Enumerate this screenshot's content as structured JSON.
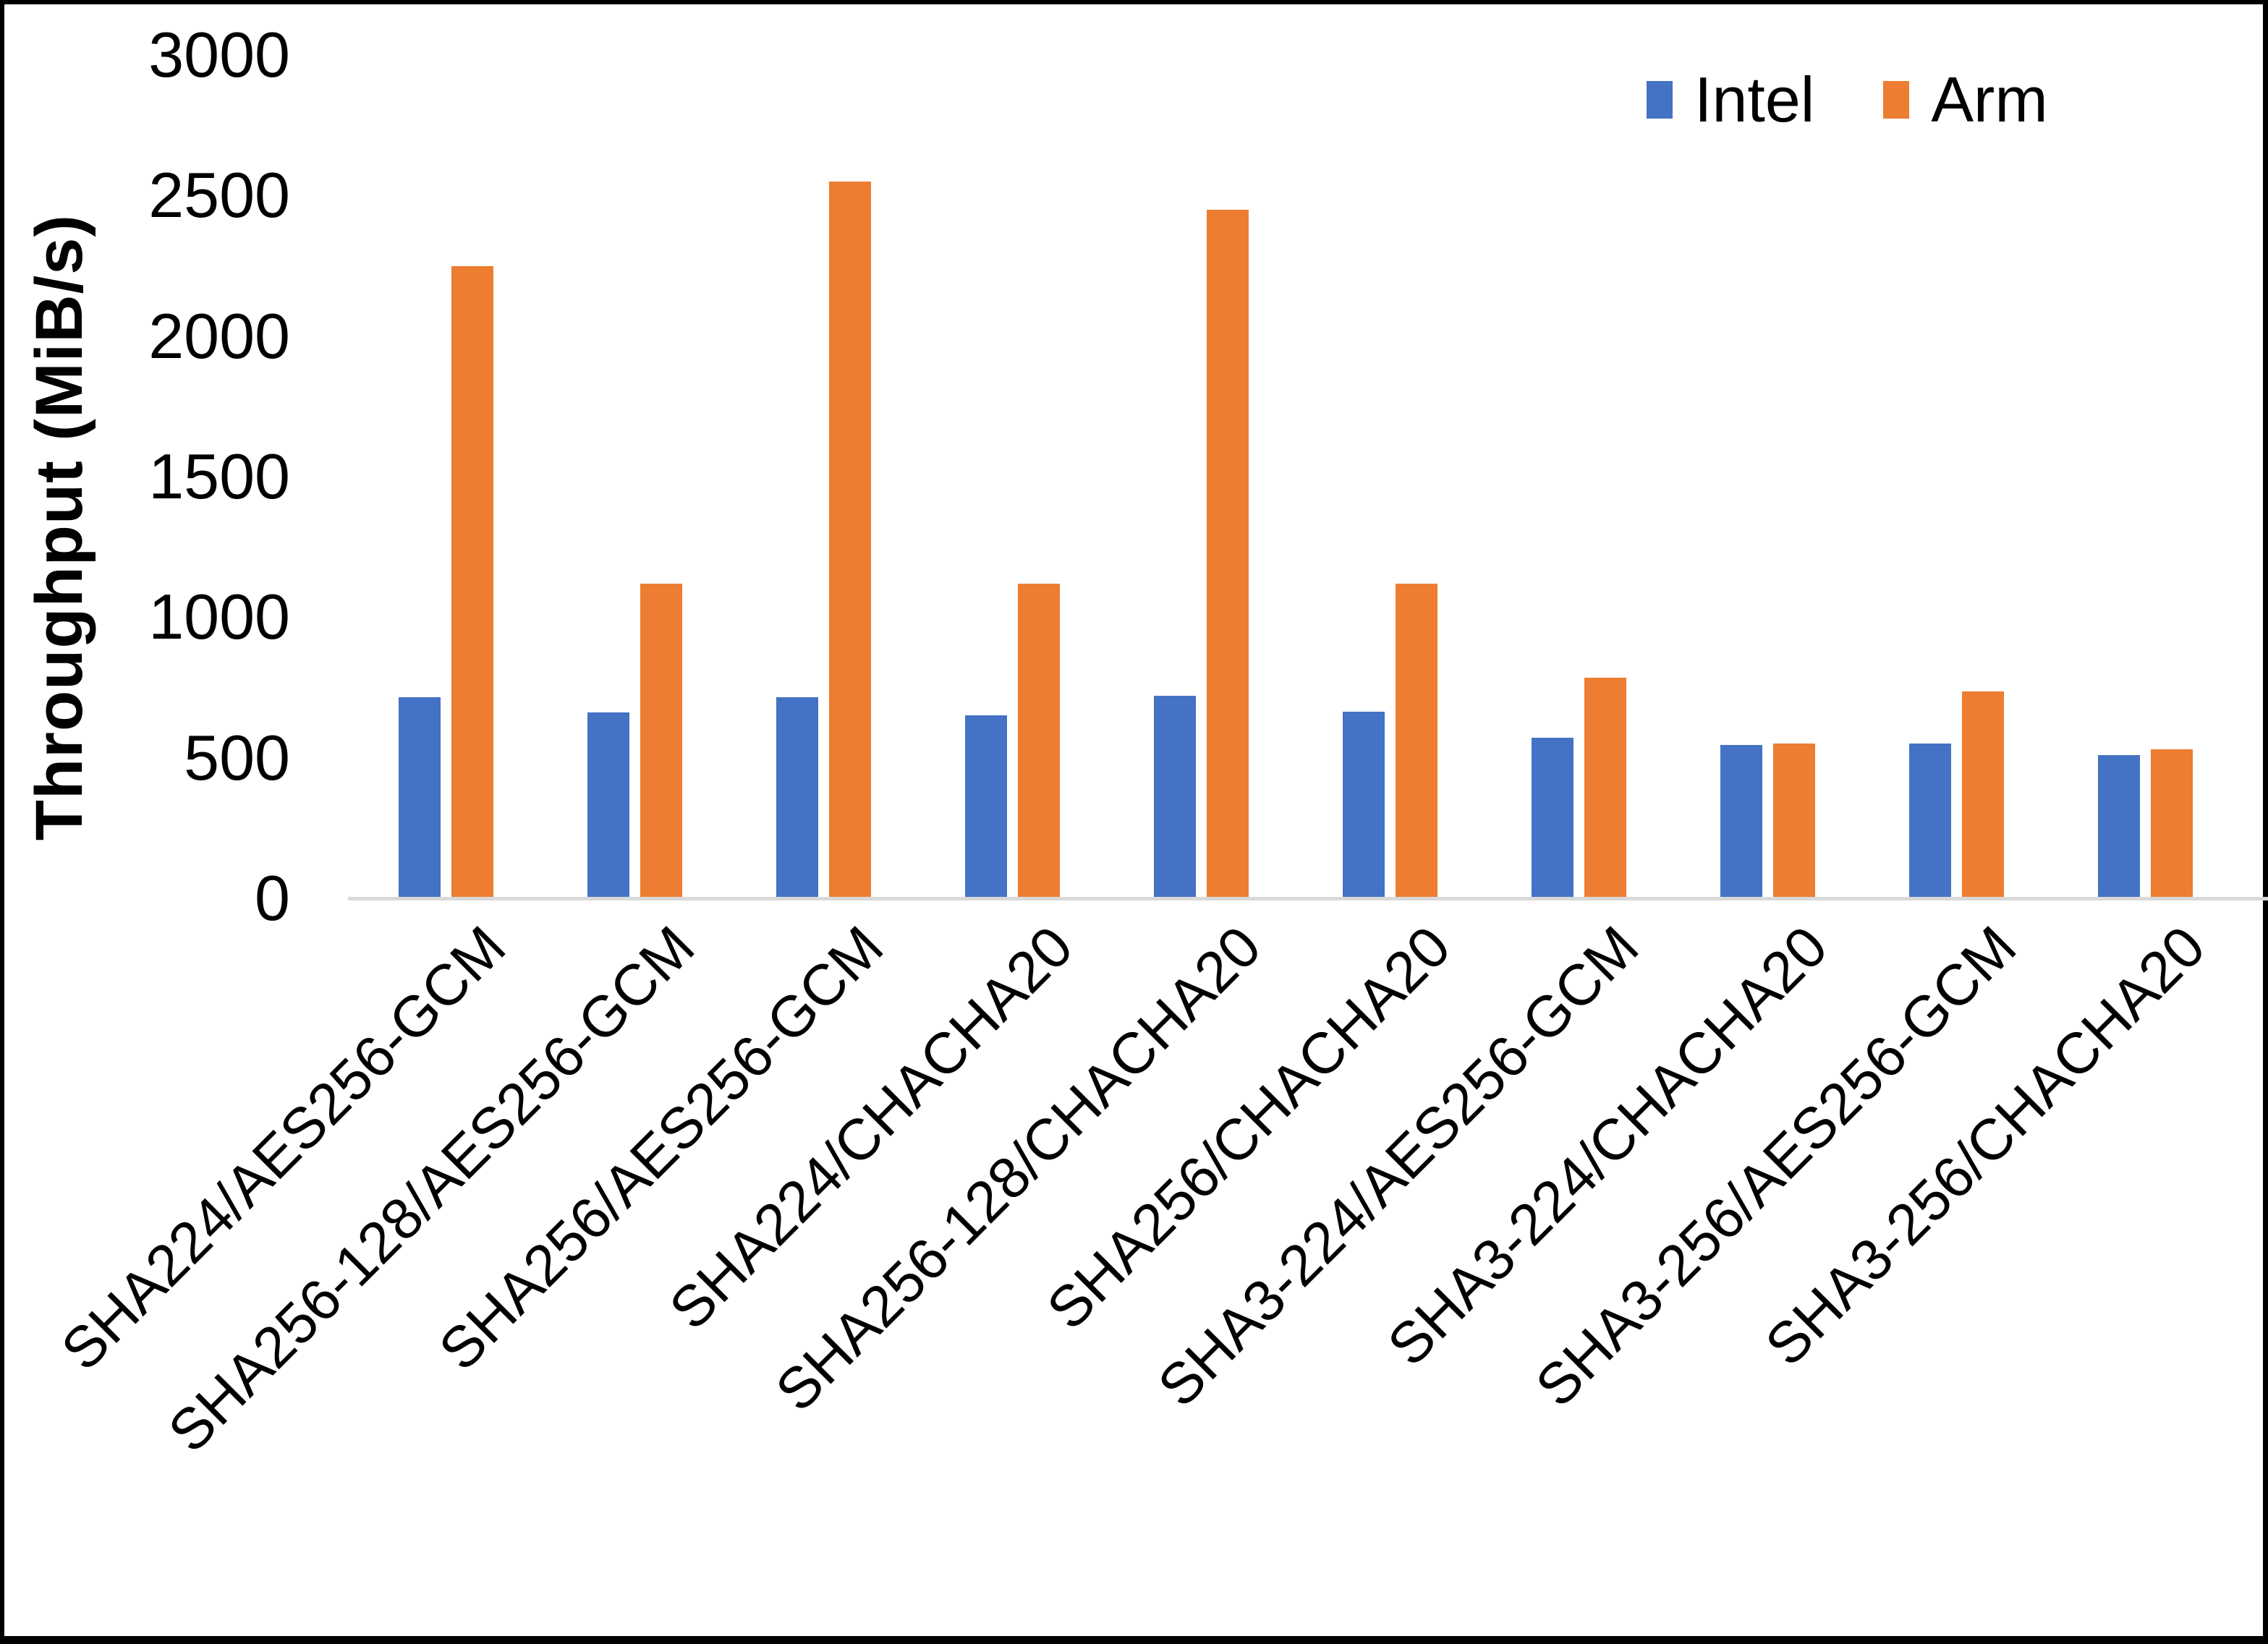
{
  "chart_data": {
    "type": "bar",
    "title": "",
    "xlabel": "",
    "ylabel": "Throughput (MiB/s)",
    "ylim": [
      0,
      3000
    ],
    "yticks": [
      0,
      500,
      1000,
      1500,
      2000,
      2500,
      3000
    ],
    "grid": false,
    "legend_position": "top-right",
    "categories": [
      "SHA224/AES256-GCM",
      "SHA256-128/AES256-GCM",
      "SHA256/AES256-GCM",
      "SHA224/CHACHA20",
      "SHA256-128/CHACHA20",
      "SHA256/CHACHA20",
      "SHA3-224/AES256-GCM",
      "SHA3-224/CHACHA20",
      "SHA3-256/AES256-GCM",
      "SHA3-256/CHACHA20"
    ],
    "series": [
      {
        "name": "Intel",
        "color": "#4472C4",
        "values": [
          715,
          660,
          715,
          650,
          720,
          665,
          570,
          545,
          550,
          510
        ]
      },
      {
        "name": "Arm",
        "color": "#ED7D31",
        "values": [
          2250,
          1120,
          2550,
          1120,
          2450,
          1120,
          785,
          550,
          735,
          530
        ]
      }
    ],
    "axis_line_color": "#D9D9D9"
  },
  "colors": {
    "background": "#FFFFFF",
    "frame_border": "#000000",
    "text": "#000000"
  }
}
